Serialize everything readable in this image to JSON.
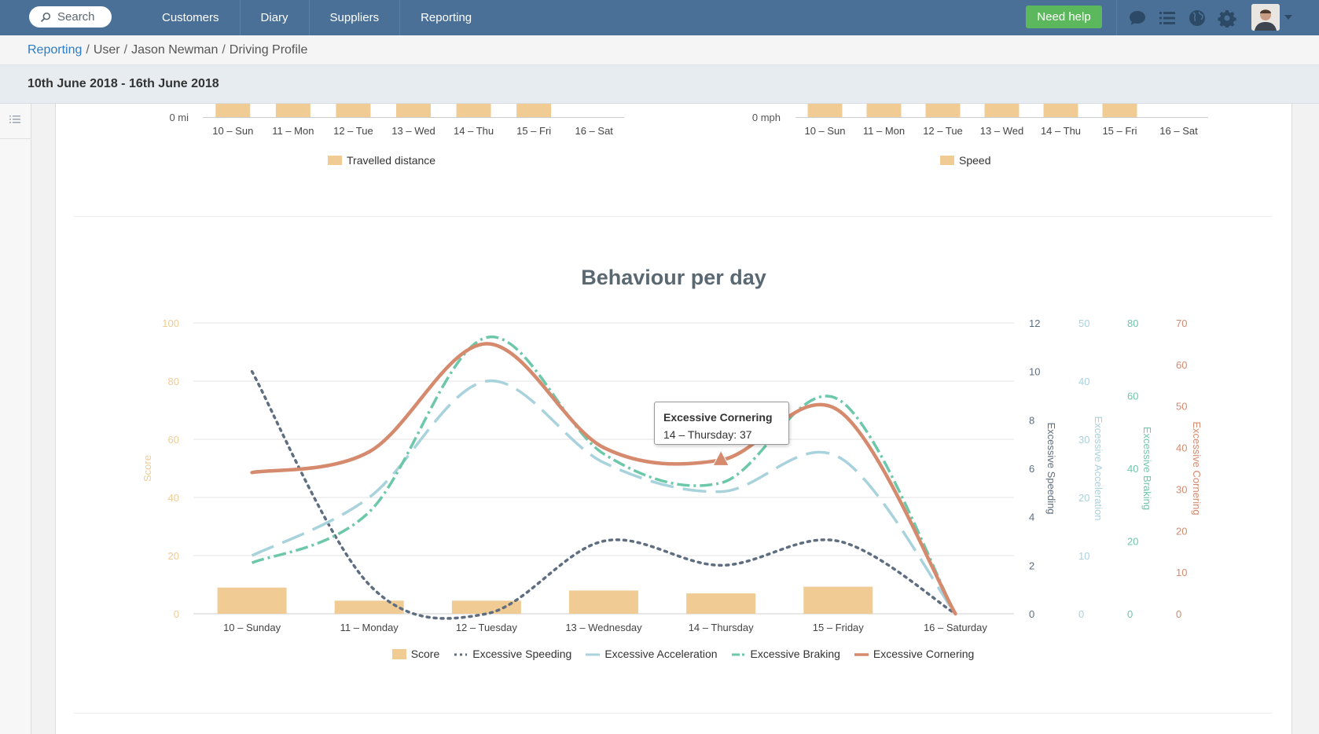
{
  "topbar": {
    "search_placeholder": "Search",
    "nav": [
      "Customers",
      "Diary",
      "Suppliers",
      "Reporting"
    ],
    "help_label": "Need help",
    "icons": [
      "chat-icon",
      "list-icon",
      "globe-icon",
      "gear-icon"
    ]
  },
  "breadcrumb": {
    "items": [
      "Reporting",
      "User",
      "Jason Newman",
      "Driving Profile"
    ]
  },
  "date_range": "10th June 2018 - 16th June 2018",
  "distance_chart": {
    "y_zero_label": "0 mi",
    "categories": [
      "10 – Sun",
      "11 – Mon",
      "12 – Tue",
      "13 – Wed",
      "14 – Thu",
      "15 – Fri",
      "16 – Sat"
    ],
    "legend": "Travelled distance"
  },
  "speed_chart": {
    "y_zero_label": "0 mph",
    "categories": [
      "10 – Sun",
      "11 – Mon",
      "12 – Tue",
      "13 – Wed",
      "14 – Thu",
      "15 – Fri",
      "16 – Sat"
    ],
    "legend": "Speed"
  },
  "tooltip": {
    "title": "Excessive Cornering",
    "body": "14 – Thursday: 37"
  },
  "chart_data": {
    "type": "bar",
    "title": "Behaviour per day",
    "categories": [
      "10 – Sunday",
      "11 – Monday",
      "12 – Tuesday",
      "13 – Wednesday",
      "14 – Thursday",
      "15 – Friday",
      "16 – Saturday"
    ],
    "axes": [
      {
        "name": "Score",
        "side": "left",
        "ticks": [
          0,
          20,
          40,
          60,
          80,
          100
        ],
        "range": [
          0,
          100
        ],
        "color": "#f0cb94"
      },
      {
        "name": "Excessive Speeding",
        "side": "right",
        "ticks": [
          0,
          2,
          4,
          6,
          8,
          10,
          12
        ],
        "range": [
          0,
          12
        ],
        "color": "#5e6e80"
      },
      {
        "name": "Excessive Acceleration",
        "side": "right",
        "ticks": [
          0,
          10,
          20,
          30,
          40,
          50
        ],
        "range": [
          0,
          50
        ],
        "color": "#a8d2dc"
      },
      {
        "name": "Excessive Braking",
        "side": "right",
        "ticks": [
          0,
          20,
          40,
          60,
          80
        ],
        "range": [
          0,
          80
        ],
        "color": "#6cc8a8"
      },
      {
        "name": "Excessive Cornering",
        "side": "right",
        "ticks": [
          0,
          10,
          20,
          30,
          40,
          50,
          60,
          70
        ],
        "range": [
          0,
          70
        ],
        "color": "#d58a6e"
      }
    ],
    "series": [
      {
        "name": "Score",
        "type": "bar",
        "axis": 0,
        "values": [
          9,
          4.5,
          4.5,
          8,
          7,
          9.3,
          0
        ],
        "color": "#f0cb94"
      },
      {
        "name": "Excessive Speeding",
        "type": "line",
        "dash": "dot",
        "axis": 1,
        "values": [
          10,
          1.2,
          0,
          3,
          2,
          3,
          0
        ],
        "color": "#5e6e80"
      },
      {
        "name": "Excessive Acceleration",
        "type": "line",
        "dash": "long",
        "axis": 2,
        "values": [
          10,
          20,
          40,
          26,
          21,
          27,
          0
        ],
        "color": "#a8d2dc"
      },
      {
        "name": "Excessive Braking",
        "type": "line",
        "dash": "dashdot",
        "axis": 3,
        "values": [
          14,
          28,
          76,
          44,
          36,
          59,
          0
        ],
        "color": "#6cc8a8"
      },
      {
        "name": "Excessive Cornering",
        "type": "line",
        "dash": "solid",
        "axis": 4,
        "values": [
          34,
          39,
          65,
          40,
          37,
          49,
          0
        ],
        "color": "#d58a6e"
      }
    ],
    "grid": true,
    "legend_position": "bottom"
  }
}
